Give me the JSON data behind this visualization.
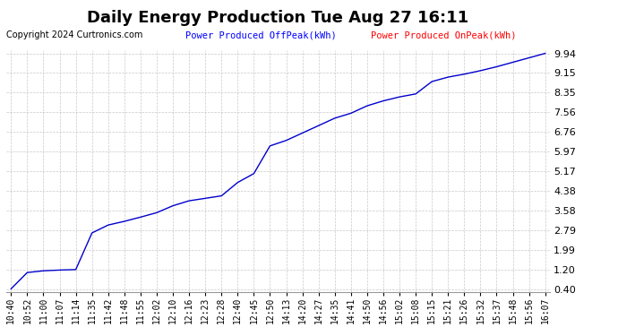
{
  "title": "Daily Energy Production Tue Aug 27 16:11",
  "copyright": "Copyright 2024 Curtronics.com",
  "legend_offpeak": "Power Produced OffPeak(kWh)",
  "legend_onpeak": "Power Produced OnPeak(kWh)",
  "background_color": "#ffffff",
  "line_color": "#0000cc",
  "grid_color": "#bbbbbb",
  "yticks": [
    0.4,
    1.2,
    1.99,
    2.79,
    3.58,
    4.38,
    5.17,
    5.97,
    6.76,
    7.56,
    8.35,
    9.15,
    9.94
  ],
  "xtick_labels": [
    "10:40",
    "10:52",
    "11:00",
    "11:07",
    "11:14",
    "11:35",
    "11:42",
    "11:48",
    "11:55",
    "12:02",
    "12:10",
    "12:16",
    "12:23",
    "12:28",
    "12:40",
    "12:45",
    "12:50",
    "14:13",
    "14:20",
    "14:27",
    "14:35",
    "14:41",
    "14:50",
    "14:56",
    "15:02",
    "15:08",
    "15:15",
    "15:21",
    "15:26",
    "15:32",
    "15:37",
    "15:48",
    "15:56",
    "16:07"
  ],
  "x_values": [
    0,
    1,
    2,
    3,
    4,
    5,
    6,
    7,
    8,
    9,
    10,
    11,
    12,
    13,
    14,
    15,
    16,
    17,
    18,
    19,
    20,
    21,
    22,
    23,
    24,
    25,
    26,
    27,
    28,
    29,
    30,
    31,
    32,
    33
  ],
  "y_values": [
    0.42,
    1.08,
    1.15,
    1.18,
    1.2,
    2.68,
    3.0,
    3.15,
    3.32,
    3.5,
    3.78,
    3.98,
    4.08,
    4.18,
    4.72,
    5.08,
    6.2,
    6.42,
    6.72,
    7.02,
    7.32,
    7.52,
    7.82,
    8.02,
    8.18,
    8.3,
    8.8,
    8.98,
    9.1,
    9.24,
    9.4,
    9.58,
    9.76,
    9.94
  ],
  "ylim": [
    0.28,
    10.06
  ],
  "title_fontsize": 13,
  "label_fontsize": 7,
  "copyright_fontsize": 7,
  "legend_fontsize": 7.5
}
